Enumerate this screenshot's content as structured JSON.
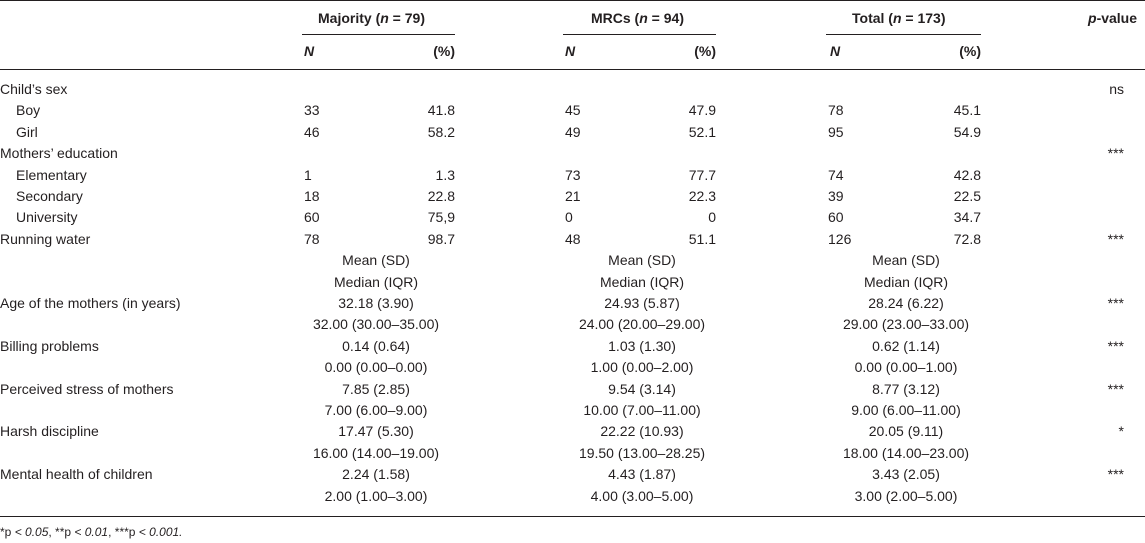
{
  "header": {
    "groups": [
      {
        "pre": "Majority (",
        "n": "n",
        "post": " = 79)"
      },
      {
        "pre": "MRCs (",
        "n": "n",
        "post": " = 94)"
      },
      {
        "pre": "Total (",
        "n": "n",
        "post": " = 173)"
      }
    ],
    "pvalue_p": "p",
    "pvalue_rest": "-value",
    "n_label": "N",
    "pct_label": "(%)"
  },
  "count_rows": [
    {
      "label": "Child’s sex",
      "indent": false,
      "p": "ns",
      "values": []
    },
    {
      "label": "Boy",
      "indent": true,
      "p": "",
      "values": [
        "33",
        "41.8",
        "45",
        "47.9",
        "78",
        "45.1"
      ]
    },
    {
      "label": "Girl",
      "indent": true,
      "p": "",
      "values": [
        "46",
        "58.2",
        "49",
        "52.1",
        "95",
        "54.9"
      ]
    },
    {
      "label": "Mothers’ education",
      "indent": false,
      "p": "***",
      "values": []
    },
    {
      "label": "Elementary",
      "indent": true,
      "p": "",
      "values": [
        "1",
        "1.3",
        "73",
        "77.7",
        "74",
        "42.8"
      ]
    },
    {
      "label": "Secondary",
      "indent": true,
      "p": "",
      "values": [
        "18",
        "22.8",
        "21",
        "22.3",
        "39",
        "22.5"
      ]
    },
    {
      "label": "University",
      "indent": true,
      "p": "",
      "values": [
        "60",
        "75,9",
        "0",
        "0",
        "60",
        "34.7"
      ]
    },
    {
      "label": "Running water",
      "indent": false,
      "p": "***",
      "values": [
        "78",
        "98.7",
        "48",
        "51.1",
        "126",
        "72.8"
      ]
    }
  ],
  "stat_header": {
    "line1": "Mean (SD)",
    "line2": "Median (IQR)"
  },
  "stat_rows": [
    {
      "label": "Age of the mothers (in years)",
      "p": "***",
      "mean": [
        "32.18 (3.90)",
        "24.93 (5.87)",
        "28.24 (6.22)"
      ],
      "median": [
        "32.00 (30.00–35.00)",
        "24.00 (20.00–29.00)",
        "29.00 (23.00–33.00)"
      ]
    },
    {
      "label": "Billing problems",
      "p": "***",
      "mean": [
        "0.14 (0.64)",
        "1.03 (1.30)",
        "0.62 (1.14)"
      ],
      "median": [
        "0.00 (0.00–0.00)",
        "1.00 (0.00–2.00)",
        "0.00 (0.00–1.00)"
      ]
    },
    {
      "label": "Perceived stress of mothers",
      "p": "***",
      "mean": [
        "7.85 (2.85)",
        "9.54 (3.14)",
        "8.77 (3.12)"
      ],
      "median": [
        "7.00 (6.00–9.00)",
        "10.00 (7.00–11.00)",
        "9.00 (6.00–11.00)"
      ]
    },
    {
      "label": "Harsh discipline",
      "p": "*",
      "mean": [
        "17.47 (5.30)",
        "22.22 (10.93)",
        "20.05 (9.11)"
      ],
      "median": [
        "16.00 (14.00–19.00)",
        "19.50 (13.00–28.25)",
        "18.00 (14.00–23.00)"
      ]
    },
    {
      "label": "Mental health of children",
      "p": "***",
      "mean": [
        "2.24 (1.58)",
        "4.43 (1.87)",
        "3.43 (2.05)"
      ],
      "median": [
        "2.00 (1.00–3.00)",
        "4.00 (3.00–5.00)",
        "3.00 (2.00–5.00)"
      ]
    }
  ],
  "footnote": [
    {
      "text": "*p ",
      "italic": false
    },
    {
      "text": "< 0.05",
      "italic": true
    },
    {
      "text": ", **p ",
      "italic": false
    },
    {
      "text": "< 0.01",
      "italic": true
    },
    {
      "text": ", ***p ",
      "italic": false
    },
    {
      "text": "< 0.001.",
      "italic": true
    }
  ]
}
